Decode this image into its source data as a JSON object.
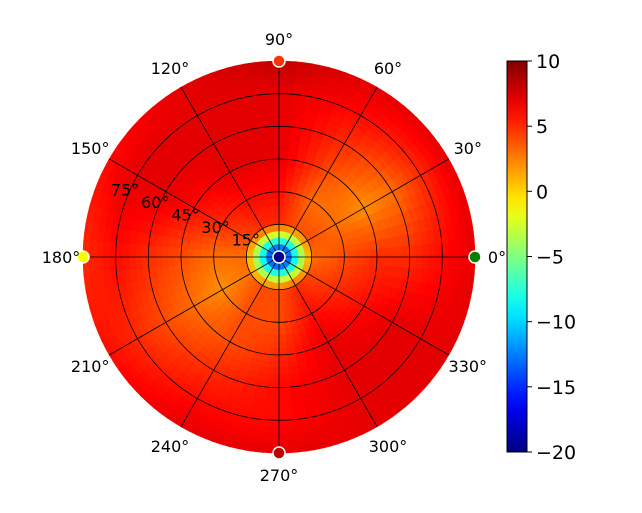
{
  "chart_data": {
    "type": "heatmap",
    "projection": "polar",
    "title": "",
    "theta_ticks": [
      {
        "deg": 0,
        "label": "0°"
      },
      {
        "deg": 30,
        "label": "30°"
      },
      {
        "deg": 60,
        "label": "60°"
      },
      {
        "deg": 90,
        "label": "90°"
      },
      {
        "deg": 120,
        "label": "120°"
      },
      {
        "deg": 150,
        "label": "150°"
      },
      {
        "deg": 180,
        "label": "180°"
      },
      {
        "deg": 210,
        "label": "210°"
      },
      {
        "deg": 240,
        "label": "240°"
      },
      {
        "deg": 270,
        "label": "270°"
      },
      {
        "deg": 300,
        "label": "300°"
      },
      {
        "deg": 330,
        "label": "330°"
      }
    ],
    "r_ticks": [
      {
        "value": 15,
        "label": "15°"
      },
      {
        "value": 30,
        "label": "30°"
      },
      {
        "value": 45,
        "label": "45°"
      },
      {
        "value": 60,
        "label": "60°"
      },
      {
        "value": 75,
        "label": "75°"
      }
    ],
    "r_range": [
      0,
      90
    ],
    "grid": true,
    "colormap": "jet",
    "colorbar": {
      "range": [
        -20,
        10
      ],
      "ticks": [
        {
          "value": 10,
          "label": "10"
        },
        {
          "value": 5,
          "label": "5"
        },
        {
          "value": 0,
          "label": "0"
        },
        {
          "value": -5,
          "label": "−5"
        },
        {
          "value": -10,
          "label": "−10"
        },
        {
          "value": -15,
          "label": "−15"
        },
        {
          "value": -20,
          "label": "−20"
        }
      ]
    },
    "field_estimate": [
      {
        "theta": 0,
        "r": [
          -20,
          3,
          4,
          5,
          5,
          6,
          7
        ]
      },
      {
        "theta": 30,
        "r": [
          -20,
          4,
          3,
          2,
          3,
          5,
          7
        ]
      },
      {
        "theta": 60,
        "r": [
          -20,
          4,
          3,
          4,
          5,
          6,
          7
        ]
      },
      {
        "theta": 90,
        "r": [
          -20,
          5,
          6,
          7,
          7,
          7,
          8
        ]
      },
      {
        "theta": 120,
        "r": [
          -20,
          5,
          6,
          7,
          7,
          7,
          7
        ]
      },
      {
        "theta": 150,
        "r": [
          -20,
          4,
          5,
          6,
          7,
          7,
          6
        ]
      },
      {
        "theta": 180,
        "r": [
          -20,
          3,
          3,
          4,
          5,
          6,
          5
        ]
      },
      {
        "theta": 210,
        "r": [
          -20,
          3,
          2,
          3,
          4,
          5,
          6
        ]
      },
      {
        "theta": 240,
        "r": [
          -20,
          4,
          4,
          4,
          5,
          6,
          7
        ]
      },
      {
        "theta": 270,
        "r": [
          -20,
          4,
          4,
          5,
          6,
          6,
          7
        ]
      },
      {
        "theta": 300,
        "r": [
          -20,
          5,
          6,
          7,
          7,
          7,
          7
        ]
      },
      {
        "theta": 330,
        "r": [
          -20,
          4,
          5,
          6,
          7,
          7,
          7
        ]
      }
    ],
    "markers": [
      {
        "theta": 0,
        "r": 0,
        "value": -20,
        "color": "#00008b"
      },
      {
        "theta": 0,
        "r": 90,
        "value": -5,
        "color": "#008000"
      },
      {
        "theta": 90,
        "r": 90,
        "value": 10,
        "color": "#ff3300"
      },
      {
        "theta": 180,
        "r": 90,
        "value": 0,
        "color": "#ffff00"
      },
      {
        "theta": 270,
        "r": 90,
        "value": 10,
        "color": "#c00000"
      }
    ]
  }
}
